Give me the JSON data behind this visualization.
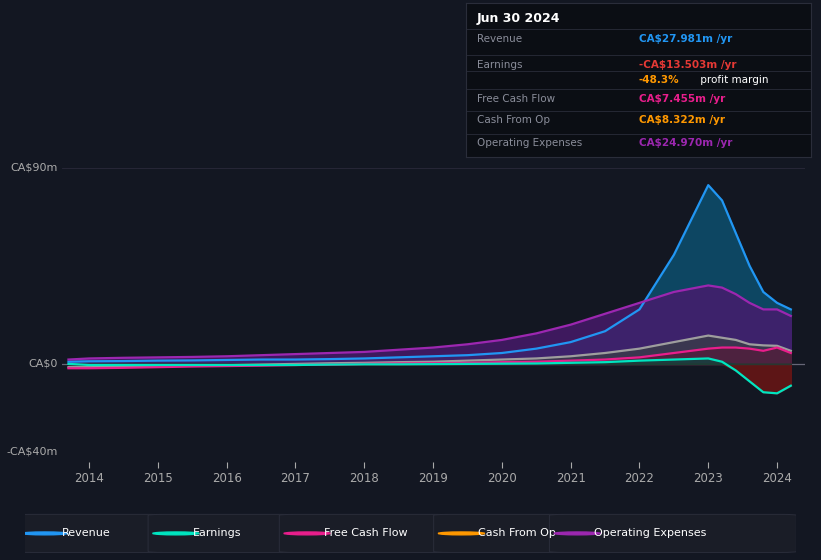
{
  "bg_color": "#131722",
  "plot_bg_color": "#131722",
  "ylabel_top": "CA$90m",
  "ylabel_zero": "CA$0",
  "ylabel_bottom": "-CA$40m",
  "x_labels": [
    "2014",
    "2015",
    "2016",
    "2017",
    "2018",
    "2019",
    "2020",
    "2021",
    "2022",
    "2023",
    "2024"
  ],
  "x_ticks": [
    2014,
    2015,
    2016,
    2017,
    2018,
    2019,
    2020,
    2021,
    2022,
    2023,
    2024
  ],
  "legend": [
    {
      "label": "Revenue",
      "color": "#2196f3"
    },
    {
      "label": "Earnings",
      "color": "#00e5c0"
    },
    {
      "label": "Free Cash Flow",
      "color": "#e91e8c"
    },
    {
      "label": "Cash From Op",
      "color": "#ff9800"
    },
    {
      "label": "Operating Expenses",
      "color": "#9c27b0"
    }
  ],
  "years": [
    2013.7,
    2014.0,
    2014.5,
    2015.0,
    2015.5,
    2016.0,
    2016.5,
    2017.0,
    2017.5,
    2018.0,
    2018.5,
    2019.0,
    2019.5,
    2020.0,
    2020.5,
    2021.0,
    2021.5,
    2022.0,
    2022.5,
    2023.0,
    2023.2,
    2023.4,
    2023.6,
    2023.8,
    2024.0,
    2024.2
  ],
  "revenue": [
    1.0,
    1.2,
    1.3,
    1.5,
    1.6,
    1.8,
    2.0,
    2.0,
    2.2,
    2.5,
    3.0,
    3.5,
    4.0,
    5.0,
    7.0,
    10.0,
    15.0,
    25.0,
    50.0,
    82.0,
    75.0,
    60.0,
    45.0,
    33.0,
    28.0,
    25.0
  ],
  "earnings": [
    0.0,
    -0.5,
    -0.5,
    -0.5,
    -0.5,
    -0.5,
    -0.5,
    -0.5,
    -0.3,
    -0.2,
    -0.2,
    -0.1,
    0.0,
    0.1,
    0.2,
    0.5,
    0.8,
    1.5,
    2.0,
    2.5,
    1.0,
    -3.0,
    -8.0,
    -13.0,
    -13.5,
    -10.0
  ],
  "free_cash_flow": [
    -2.0,
    -2.0,
    -1.8,
    -1.5,
    -1.2,
    -1.0,
    -0.8,
    -0.5,
    -0.3,
    0.0,
    0.2,
    0.3,
    0.5,
    0.8,
    1.0,
    1.5,
    2.0,
    3.0,
    5.0,
    7.0,
    7.5,
    7.5,
    7.0,
    6.0,
    7.5,
    5.0
  ],
  "cash_from_op": [
    -1.5,
    -1.5,
    -1.3,
    -1.0,
    -0.8,
    -0.6,
    -0.3,
    0.0,
    0.3,
    0.5,
    0.8,
    1.0,
    1.5,
    2.0,
    2.5,
    3.5,
    5.0,
    7.0,
    10.0,
    13.0,
    12.0,
    11.0,
    9.0,
    8.5,
    8.3,
    6.0
  ],
  "op_expenses": [
    2.0,
    2.5,
    2.8,
    3.0,
    3.2,
    3.5,
    4.0,
    4.5,
    5.0,
    5.5,
    6.5,
    7.5,
    9.0,
    11.0,
    14.0,
    18.0,
    23.0,
    28.0,
    33.0,
    36.0,
    35.0,
    32.0,
    28.0,
    25.0,
    25.0,
    22.0
  ],
  "ylim": [
    -45,
    95
  ],
  "xlim": [
    2013.6,
    2024.4
  ],
  "info_title": "Jun 30 2024",
  "info_rows": [
    {
      "label": "Revenue",
      "value": "CA$27.981m /yr",
      "color": "#2196f3"
    },
    {
      "label": "Earnings",
      "value": "-CA$13.503m /yr",
      "color": "#e53935"
    },
    {
      "label": "",
      "value": "-48.3%",
      "color": "#ff9800",
      "suffix": " profit margin",
      "suffix_color": "#ffffff"
    },
    {
      "label": "Free Cash Flow",
      "value": "CA$7.455m /yr",
      "color": "#e91e8c"
    },
    {
      "label": "Cash From Op",
      "value": "CA$8.322m /yr",
      "color": "#ff9800"
    },
    {
      "label": "Operating Expenses",
      "value": "CA$24.970m /yr",
      "color": "#9c27b0"
    }
  ]
}
